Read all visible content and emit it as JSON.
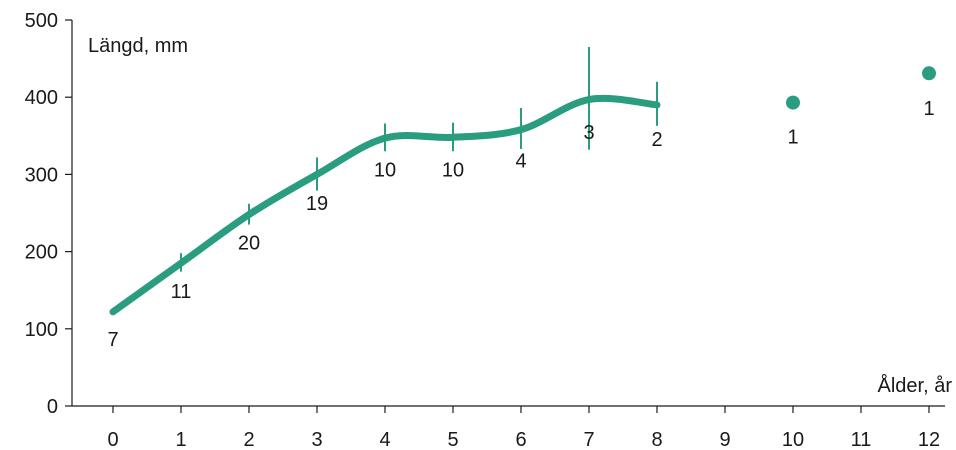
{
  "chart_data": {
    "type": "line",
    "ylabel": "Längd, mm",
    "xlabel": "Ålder, år",
    "xlim": [
      0,
      12
    ],
    "ylim": [
      0,
      500
    ],
    "x_ticks": [
      0,
      1,
      2,
      3,
      4,
      5,
      6,
      7,
      8,
      9,
      10,
      11,
      12
    ],
    "y_ticks": [
      0,
      100,
      200,
      300,
      400,
      500
    ],
    "grid": false,
    "color": "#2a9d80",
    "line": {
      "x": [
        0,
        1,
        2,
        3,
        4,
        5,
        6,
        7,
        8
      ],
      "y": [
        122,
        185,
        248,
        300,
        347,
        348,
        358,
        397,
        390
      ]
    },
    "error_bars": [
      {
        "x": 1,
        "low": 174,
        "high": 198
      },
      {
        "x": 2,
        "low": 235,
        "high": 262
      },
      {
        "x": 3,
        "low": 279,
        "high": 322
      },
      {
        "x": 4,
        "low": 330,
        "high": 366
      },
      {
        "x": 5,
        "low": 330,
        "high": 367
      },
      {
        "x": 6,
        "low": 333,
        "high": 386
      },
      {
        "x": 7,
        "low": 332,
        "high": 465
      },
      {
        "x": 8,
        "low": 363,
        "high": 420
      }
    ],
    "points": [
      {
        "x": 10,
        "y": 393
      },
      {
        "x": 12,
        "y": 431
      }
    ],
    "sample_sizes": [
      {
        "x": 0,
        "n": "7",
        "y": 78
      },
      {
        "x": 1,
        "n": "11",
        "y": 140
      },
      {
        "x": 2,
        "n": "20",
        "y": 203
      },
      {
        "x": 3,
        "n": "19",
        "y": 254
      },
      {
        "x": 4,
        "n": "10",
        "y": 297
      },
      {
        "x": 5,
        "n": "10",
        "y": 297
      },
      {
        "x": 6,
        "n": "4",
        "y": 309
      },
      {
        "x": 7,
        "n": "3",
        "y": 346
      },
      {
        "x": 8,
        "n": "2",
        "y": 337
      },
      {
        "x": 10,
        "n": "1",
        "y": 340
      },
      {
        "x": 12,
        "n": "1",
        "y": 377
      }
    ]
  }
}
